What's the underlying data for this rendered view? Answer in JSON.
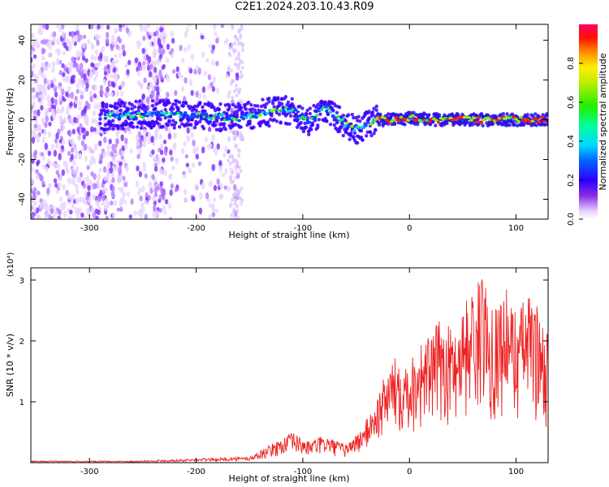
{
  "title": "C2E1.2024.203.10.43.R09",
  "chart_data": [
    {
      "type": "heatmap",
      "xlabel": "Height of straight line (km)",
      "ylabel": "Frequency (Hz)",
      "xlim": [
        -355,
        130
      ],
      "ylim": [
        -50,
        48
      ],
      "xticks": [
        -300,
        -200,
        -100,
        0,
        100
      ],
      "yticks": [
        -40,
        -20,
        0,
        20,
        40
      ],
      "colorbar": {
        "label": "Normalized spectral amplitude",
        "range": [
          0,
          1
        ],
        "ticks": [
          0.0,
          0.2,
          0.4,
          0.6,
          0.8
        ]
      },
      "signal_track": {
        "x": [
          -280,
          -230,
          -200,
          -160,
          -130,
          -110,
          -95,
          -80,
          -70,
          -60,
          -50,
          -40,
          -30,
          -20,
          -10,
          0,
          20,
          60,
          100,
          130
        ],
        "y": [
          2,
          3,
          2,
          1,
          4,
          5,
          -2,
          6,
          2,
          -2,
          -5,
          -3,
          0,
          0,
          0,
          1,
          0,
          0,
          0,
          0
        ]
      },
      "grid": false
    },
    {
      "type": "line",
      "xlabel": "Height of straight line (km)",
      "ylabel": "SNR (10 * v/v)",
      "yscale_label": "(x10⁴)",
      "xlim": [
        -355,
        130
      ],
      "ylim": [
        0,
        3.2
      ],
      "xticks": [
        -300,
        -200,
        -100,
        0,
        100
      ],
      "yticks": [
        1,
        2,
        3
      ],
      "series_color": "#ee2222",
      "envelope": {
        "x": [
          -355,
          -260,
          -210,
          -180,
          -150,
          -125,
          -110,
          -95,
          -80,
          -60,
          -45,
          -30,
          -20,
          -10,
          0,
          10,
          20,
          30,
          40,
          50,
          60,
          70,
          80,
          90,
          100,
          110,
          120,
          128
        ],
        "y": [
          0.03,
          0.03,
          0.06,
          0.08,
          0.1,
          0.35,
          0.5,
          0.35,
          0.45,
          0.3,
          0.55,
          1.1,
          1.6,
          1.8,
          1.7,
          2.0,
          2.1,
          2.4,
          2.2,
          2.6,
          2.9,
          3.1,
          2.6,
          2.9,
          2.5,
          2.8,
          2.6,
          2.2
        ]
      },
      "grid": false
    }
  ]
}
